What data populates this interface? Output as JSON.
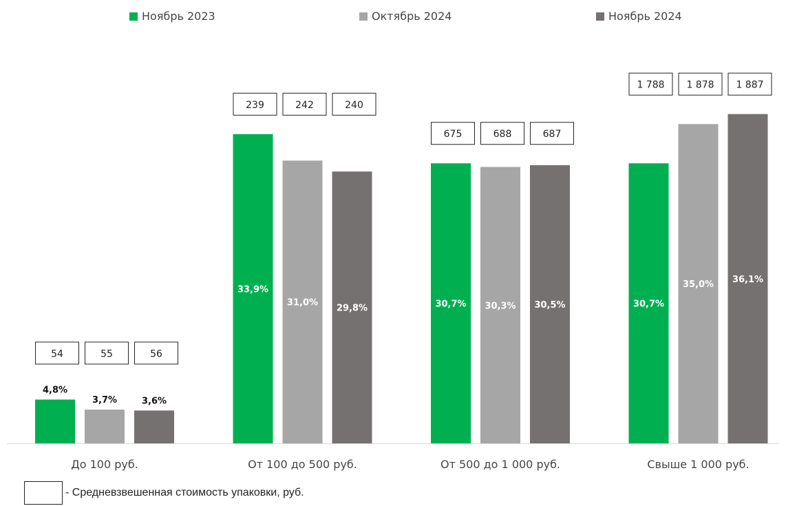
{
  "chart_data": {
    "type": "bar",
    "categories": [
      "До 100 руб.",
      "От 100 до 500 руб.",
      "От 500 до 1 000 руб.",
      "Свыше 1 000 руб."
    ],
    "series": [
      {
        "name": "Ноябрь 2023",
        "color": "#00b050",
        "values": [
          4.8,
          33.9,
          30.7,
          30.7
        ],
        "labels": [
          "4,8%",
          "33,9%",
          "30,7%",
          "30,7%"
        ],
        "box_values": [
          "54",
          "239",
          "675",
          "1 788"
        ]
      },
      {
        "name": "Октябрь 2024",
        "color": "#a6a6a6",
        "values": [
          3.7,
          31.0,
          30.3,
          35.0
        ],
        "labels": [
          "3,7%",
          "31,0%",
          "30,3%",
          "35,0%"
        ],
        "box_values": [
          "55",
          "242",
          "688",
          "1 878"
        ]
      },
      {
        "name": "Ноябрь 2024",
        "color": "#767171",
        "values": [
          3.6,
          29.8,
          30.5,
          36.1
        ],
        "labels": [
          "3,6%",
          "29,8%",
          "30,5%",
          "36,1%"
        ],
        "box_values": [
          "56",
          "240",
          "687",
          "1 887"
        ]
      }
    ],
    "ylim": [
      0,
      38
    ],
    "grid": false,
    "legend_position": "top",
    "footnote": "- Средневзвешенная стоимость упаковки, руб."
  }
}
